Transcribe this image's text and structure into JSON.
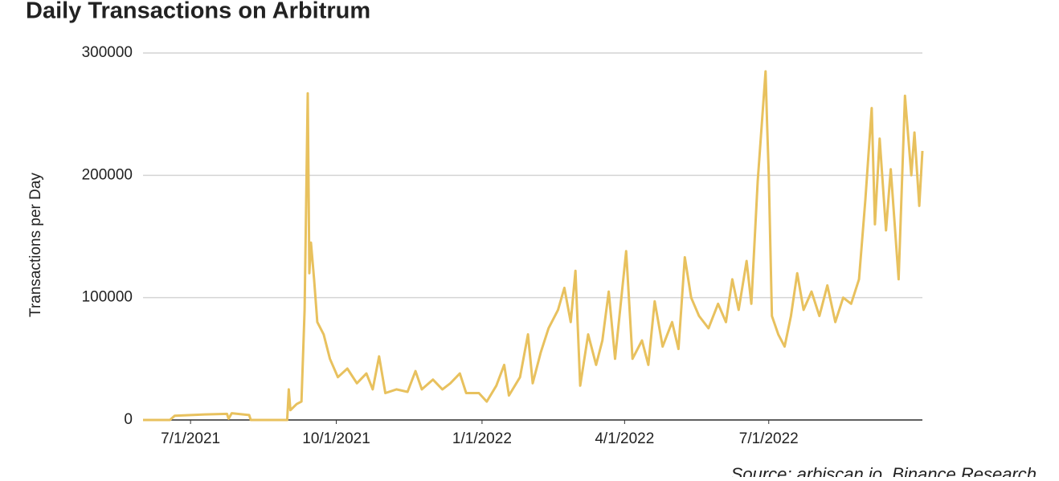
{
  "chart_data": {
    "type": "line",
    "title": "Daily Transactions on Arbitrum",
    "y_label": "Transactions per Day",
    "source": "Source: arbiscan.io, Binance Research",
    "grid": true,
    "xlim": [
      "2021-06-01",
      "2022-10-06"
    ],
    "xticks": [
      {
        "value": "2021-07-01",
        "label": "7/1/2021"
      },
      {
        "value": "2021-10-01",
        "label": "10/1/2021"
      },
      {
        "value": "2022-01-01",
        "label": "1/1/2022"
      },
      {
        "value": "2022-04-01",
        "label": "4/1/2022"
      },
      {
        "value": "2022-07-01",
        "label": "7/1/2022"
      }
    ],
    "ylim": [
      0,
      300000
    ],
    "yticks": [
      0,
      100000,
      200000,
      300000
    ],
    "x": [
      "2021-06-01",
      "2021-06-18",
      "2021-06-21",
      "2021-07-10",
      "2021-07-24",
      "2021-07-25",
      "2021-07-27",
      "2021-08-07",
      "2021-08-08",
      "2021-08-31",
      "2021-09-01",
      "2021-09-02",
      "2021-09-06",
      "2021-09-09",
      "2021-09-11",
      "2021-09-13",
      "2021-09-14",
      "2021-09-15",
      "2021-09-17",
      "2021-09-19",
      "2021-09-23",
      "2021-09-27",
      "2021-10-02",
      "2021-10-08",
      "2021-10-14",
      "2021-10-20",
      "2021-10-24",
      "2021-10-28",
      "2021-11-01",
      "2021-11-08",
      "2021-11-15",
      "2021-11-20",
      "2021-11-24",
      "2021-12-01",
      "2021-12-07",
      "2021-12-12",
      "2021-12-18",
      "2021-12-22",
      "2021-12-30",
      "2022-01-04",
      "2022-01-10",
      "2022-01-15",
      "2022-01-18",
      "2022-01-25",
      "2022-01-30",
      "2022-02-02",
      "2022-02-07",
      "2022-02-12",
      "2022-02-18",
      "2022-02-22",
      "2022-02-26",
      "2022-03-01",
      "2022-03-04",
      "2022-03-09",
      "2022-03-14",
      "2022-03-18",
      "2022-03-22",
      "2022-03-26",
      "2022-04-02",
      "2022-04-06",
      "2022-04-12",
      "2022-04-16",
      "2022-04-20",
      "2022-04-25",
      "2022-05-01",
      "2022-05-05",
      "2022-05-09",
      "2022-05-13",
      "2022-05-18",
      "2022-05-24",
      "2022-05-30",
      "2022-06-04",
      "2022-06-08",
      "2022-06-12",
      "2022-06-17",
      "2022-06-20",
      "2022-06-24",
      "2022-06-29",
      "2022-06-30",
      "2022-07-01",
      "2022-07-03",
      "2022-07-07",
      "2022-07-11",
      "2022-07-15",
      "2022-07-19",
      "2022-07-23",
      "2022-07-28",
      "2022-08-02",
      "2022-08-07",
      "2022-08-12",
      "2022-08-17",
      "2022-08-22",
      "2022-08-27",
      "2022-08-31",
      "2022-09-04",
      "2022-09-06",
      "2022-09-09",
      "2022-09-13",
      "2022-09-16",
      "2022-09-21",
      "2022-09-25",
      "2022-09-29",
      "2022-10-01",
      "2022-10-04",
      "2022-10-06"
    ],
    "series": [
      {
        "name": "Transactions per Day",
        "color": "#e8c15e",
        "values": [
          0,
          0,
          3500,
          4500,
          5000,
          1000,
          5500,
          4000,
          0,
          0,
          25000,
          8000,
          13000,
          15000,
          90000,
          267000,
          120000,
          145000,
          115000,
          80000,
          70000,
          50000,
          35000,
          42000,
          30000,
          38000,
          25000,
          52000,
          22000,
          25000,
          23000,
          40000,
          25000,
          33000,
          25000,
          30000,
          38000,
          22000,
          22000,
          15000,
          28000,
          45000,
          20000,
          35000,
          70000,
          30000,
          55000,
          75000,
          90000,
          108000,
          80000,
          122000,
          28000,
          70000,
          45000,
          65000,
          105000,
          50000,
          138000,
          50000,
          65000,
          45000,
          97000,
          60000,
          80000,
          58000,
          133000,
          100000,
          85000,
          75000,
          95000,
          80000,
          115000,
          90000,
          130000,
          95000,
          195000,
          285000,
          240000,
          200000,
          85000,
          70000,
          60000,
          85000,
          120000,
          90000,
          105000,
          85000,
          110000,
          80000,
          100000,
          95000,
          115000,
          180000,
          255000,
          160000,
          230000,
          155000,
          205000,
          115000,
          265000,
          200000,
          235000,
          175000,
          220000
        ]
      }
    ]
  }
}
